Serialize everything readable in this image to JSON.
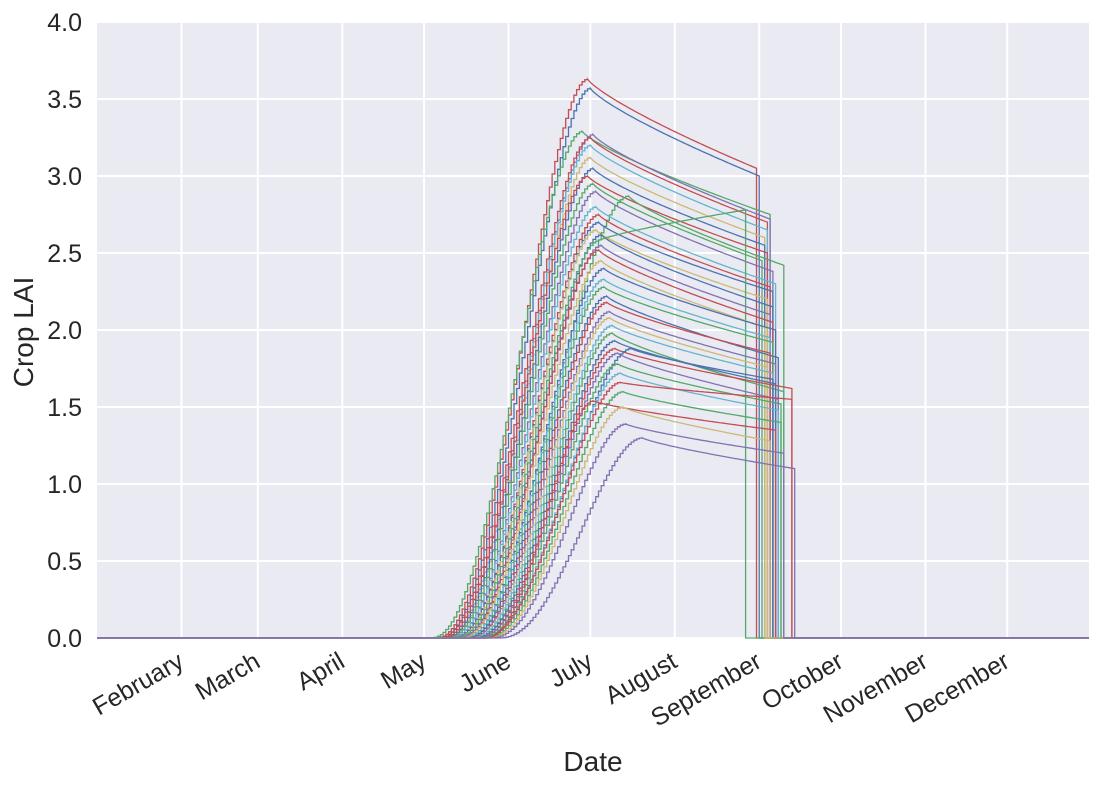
{
  "chart_data": {
    "type": "line",
    "xlabel": "Date",
    "ylabel": "Crop LAI",
    "xlim": [
      "2015-01-01",
      "2015-12-31"
    ],
    "ylim": [
      0,
      4.0
    ],
    "grid": true,
    "x_tick_labels": [
      {
        "date": "2015-02-01",
        "label": "February"
      },
      {
        "date": "2015-03-01",
        "label": "March"
      },
      {
        "date": "2015-04-01",
        "label": "April"
      },
      {
        "date": "2015-05-01",
        "label": "May"
      },
      {
        "date": "2015-06-01",
        "label": "June"
      },
      {
        "date": "2015-07-01",
        "label": "July"
      },
      {
        "date": "2015-08-01",
        "label": "August"
      },
      {
        "date": "2015-09-01",
        "label": "September"
      },
      {
        "date": "2015-10-01",
        "label": "October"
      },
      {
        "date": "2015-11-01",
        "label": "November"
      },
      {
        "date": "2015-12-01",
        "label": "December"
      }
    ],
    "y_ticks": [
      {
        "value": 0.0,
        "label": "0.0"
      },
      {
        "value": 0.5,
        "label": "0.5"
      },
      {
        "value": 1.0,
        "label": "1.0"
      },
      {
        "value": 1.5,
        "label": "1.5"
      },
      {
        "value": 2.0,
        "label": "2.0"
      },
      {
        "value": 2.5,
        "label": "2.5"
      },
      {
        "value": 3.0,
        "label": "3.0"
      },
      {
        "value": 3.5,
        "label": "3.5"
      },
      {
        "value": 4.0,
        "label": "4.0"
      }
    ],
    "series": [
      {
        "color": "#c44e52",
        "emergence": "2015-05-05",
        "peak_date": "2015-06-30",
        "peak": 3.63,
        "end_date": "2015-08-31",
        "end_lai": 3.05
      },
      {
        "color": "#4c72b0",
        "emergence": "2015-05-06",
        "peak_date": "2015-07-01",
        "peak": 3.57,
        "end_date": "2015-09-01",
        "end_lai": 3.0
      },
      {
        "color": "#55a868",
        "emergence": "2015-05-03",
        "peak_date": "2015-06-28",
        "peak": 3.29,
        "end_date": "2015-09-05",
        "end_lai": 2.75
      },
      {
        "color": "#8172b2",
        "emergence": "2015-05-07",
        "peak_date": "2015-07-02",
        "peak": 3.27,
        "end_date": "2015-09-05",
        "end_lai": 2.72
      },
      {
        "color": "#c44e52",
        "emergence": "2015-05-06",
        "peak_date": "2015-07-01",
        "peak": 3.25,
        "end_date": "2015-09-04",
        "end_lai": 2.7
      },
      {
        "color": "#64b5cd",
        "emergence": "2015-05-08",
        "peak_date": "2015-07-01",
        "peak": 3.2,
        "end_date": "2015-09-04",
        "end_lai": 2.65
      },
      {
        "color": "#ccb974",
        "emergence": "2015-05-09",
        "peak_date": "2015-07-01",
        "peak": 3.12,
        "end_date": "2015-09-03",
        "end_lai": 2.6
      },
      {
        "color": "#4c72b0",
        "emergence": "2015-05-08",
        "peak_date": "2015-07-02",
        "peak": 3.05,
        "end_date": "2015-09-03",
        "end_lai": 2.55
      },
      {
        "color": "#c44e52",
        "emergence": "2015-05-07",
        "peak_date": "2015-06-30",
        "peak": 3.0,
        "end_date": "2015-09-04",
        "end_lai": 2.5
      },
      {
        "color": "#55a868",
        "emergence": "2015-05-09",
        "peak_date": "2015-07-02",
        "peak": 2.95,
        "end_date": "2015-09-02",
        "end_lai": 2.45
      },
      {
        "color": "#8172b2",
        "emergence": "2015-05-10",
        "peak_date": "2015-07-03",
        "peak": 2.9,
        "end_date": "2015-09-06",
        "end_lai": 2.38
      },
      {
        "color": "#55a868",
        "emergence": "2015-05-12",
        "peak_date": "2015-07-15",
        "peak": 2.87,
        "end_date": "2015-09-10",
        "end_lai": 2.42
      },
      {
        "color": "#64b5cd",
        "emergence": "2015-05-10",
        "peak_date": "2015-07-03",
        "peak": 2.8,
        "end_date": "2015-09-07",
        "end_lai": 2.3
      },
      {
        "color": "#c44e52",
        "emergence": "2015-05-11",
        "peak_date": "2015-07-04",
        "peak": 2.75,
        "end_date": "2015-09-05",
        "end_lai": 2.28
      },
      {
        "color": "#4c72b0",
        "emergence": "2015-05-11",
        "peak_date": "2015-07-04",
        "peak": 2.7,
        "end_date": "2015-09-06",
        "end_lai": 2.25
      },
      {
        "color": "#ccb974",
        "emergence": "2015-05-12",
        "peak_date": "2015-07-03",
        "peak": 2.65,
        "end_date": "2015-09-04",
        "end_lai": 2.2
      },
      {
        "color": "#4c72b0",
        "emergence": "2015-05-13",
        "peak_date": "2015-07-05",
        "peak": 2.62,
        "end_date": "2015-09-06",
        "end_lai": 2.15
      },
      {
        "color": "#55a868",
        "emergence": "2015-05-12",
        "peak_date": "2015-07-04",
        "peak": 2.58,
        "end_date": "2015-08-27",
        "end_lai": 2.78
      },
      {
        "color": "#8172b2",
        "emergence": "2015-05-13",
        "peak_date": "2015-07-05",
        "peak": 2.55,
        "end_date": "2015-09-05",
        "end_lai": 2.1
      },
      {
        "color": "#c44e52",
        "emergence": "2015-05-14",
        "peak_date": "2015-07-04",
        "peak": 2.52,
        "end_date": "2015-09-06",
        "end_lai": 2.05
      },
      {
        "color": "#ccb974",
        "emergence": "2015-05-14",
        "peak_date": "2015-07-05",
        "peak": 2.45,
        "end_date": "2015-09-03",
        "end_lai": 2.02
      },
      {
        "color": "#4c72b0",
        "emergence": "2015-05-15",
        "peak_date": "2015-07-06",
        "peak": 2.4,
        "end_date": "2015-09-07",
        "end_lai": 2.0
      },
      {
        "color": "#64b5cd",
        "emergence": "2015-05-15",
        "peak_date": "2015-07-06",
        "peak": 2.33,
        "end_date": "2015-09-05",
        "end_lai": 1.95
      },
      {
        "color": "#55a868",
        "emergence": "2015-05-16",
        "peak_date": "2015-07-06",
        "peak": 2.28,
        "end_date": "2015-09-06",
        "end_lai": 1.92
      },
      {
        "color": "#4c72b0",
        "emergence": "2015-05-16",
        "peak_date": "2015-07-07",
        "peak": 2.22,
        "end_date": "2015-09-08",
        "end_lai": 1.82
      },
      {
        "color": "#c44e52",
        "emergence": "2015-05-17",
        "peak_date": "2015-07-07",
        "peak": 2.18,
        "end_date": "2015-09-05",
        "end_lai": 1.85
      },
      {
        "color": "#8172b2",
        "emergence": "2015-05-17",
        "peak_date": "2015-07-08",
        "peak": 2.12,
        "end_date": "2015-09-07",
        "end_lai": 1.78
      },
      {
        "color": "#ccb974",
        "emergence": "2015-05-18",
        "peak_date": "2015-07-08",
        "peak": 2.08,
        "end_date": "2015-09-04",
        "end_lai": 1.76
      },
      {
        "color": "#64b5cd",
        "emergence": "2015-05-18",
        "peak_date": "2015-07-09",
        "peak": 2.03,
        "end_date": "2015-09-06",
        "end_lai": 1.72
      },
      {
        "color": "#55a868",
        "emergence": "2015-05-19",
        "peak_date": "2015-07-09",
        "peak": 1.98,
        "end_date": "2015-09-10",
        "end_lai": 1.6
      },
      {
        "color": "#4c72b0",
        "emergence": "2015-05-19",
        "peak_date": "2015-07-10",
        "peak": 1.93,
        "end_date": "2015-09-07",
        "end_lai": 1.65
      },
      {
        "color": "#c44e52",
        "emergence": "2015-05-20",
        "peak_date": "2015-07-10",
        "peak": 1.88,
        "end_date": "2015-09-13",
        "end_lai": 1.62
      },
      {
        "color": "#8172b2",
        "emergence": "2015-05-20",
        "peak_date": "2015-07-11",
        "peak": 1.85,
        "end_date": "2015-09-08",
        "end_lai": 1.55
      },
      {
        "color": "#4c72b0",
        "emergence": "2015-05-21",
        "peak_date": "2015-07-16",
        "peak": 1.88,
        "end_date": "2015-09-06",
        "end_lai": 1.68
      },
      {
        "color": "#55a868",
        "emergence": "2015-05-21",
        "peak_date": "2015-07-11",
        "peak": 1.78,
        "end_date": "2015-09-09",
        "end_lai": 1.52
      },
      {
        "color": "#64b5cd",
        "emergence": "2015-05-22",
        "peak_date": "2015-07-12",
        "peak": 1.72,
        "end_date": "2015-09-08",
        "end_lai": 1.48
      },
      {
        "color": "#c44e52",
        "emergence": "2015-05-22",
        "peak_date": "2015-07-12",
        "peak": 1.66,
        "end_date": "2015-09-13",
        "end_lai": 1.55
      },
      {
        "color": "#55a868",
        "emergence": "2015-05-23",
        "peak_date": "2015-07-13",
        "peak": 1.6,
        "end_date": "2015-09-09",
        "end_lai": 1.4
      },
      {
        "color": "#c44e52",
        "emergence": "2015-05-23",
        "peak_date": "2015-07-02",
        "peak": 1.54,
        "end_date": "2015-09-07",
        "end_lai": 1.35
      },
      {
        "color": "#ccb974",
        "emergence": "2015-05-24",
        "peak_date": "2015-07-13",
        "peak": 1.5,
        "end_date": "2015-09-05",
        "end_lai": 1.28
      },
      {
        "color": "#8172b2",
        "emergence": "2015-05-25",
        "peak_date": "2015-07-14",
        "peak": 1.39,
        "end_date": "2015-09-10",
        "end_lai": 1.2
      },
      {
        "color": "#8172b2",
        "emergence": "2015-05-28",
        "peak_date": "2015-07-20",
        "peak": 1.3,
        "end_date": "2015-09-14",
        "end_lai": 1.1
      }
    ]
  }
}
